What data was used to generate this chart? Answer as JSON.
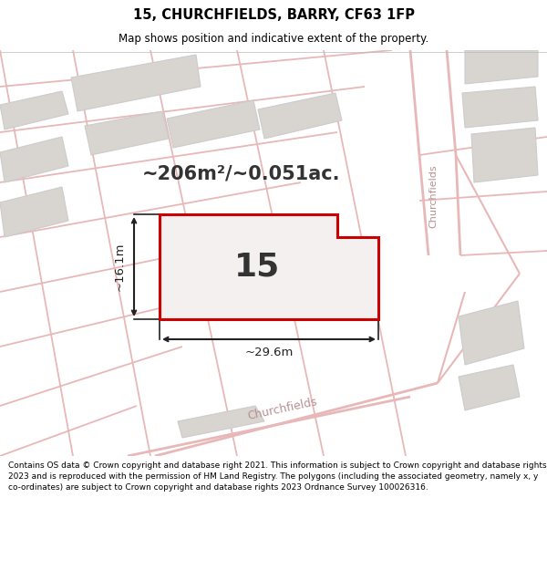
{
  "title_line1": "15, CHURCHFIELDS, BARRY, CF63 1FP",
  "title_line2": "Map shows position and indicative extent of the property.",
  "footer_text": "Contains OS data © Crown copyright and database right 2021. This information is subject to Crown copyright and database rights 2023 and is reproduced with the permission of HM Land Registry. The polygons (including the associated geometry, namely x, y co-ordinates) are subject to Crown copyright and database rights 2023 Ordnance Survey 100026316.",
  "map_bg": "#f0eeec",
  "block_fill": "#d8d4d0",
  "block_edge": "#cccccc",
  "street_color": "#e8b8b8",
  "highlight_color": "#cc0000",
  "area_text": "~206m²/~0.051ac.",
  "width_text": "~29.6m",
  "height_text": "~16.1m",
  "label_15": "15",
  "street_name_right": "Churchfields",
  "street_name_bottom": "Churchfields",
  "white_bg": "#ffffff",
  "dim_color": "#222222",
  "text_color": "#333333"
}
